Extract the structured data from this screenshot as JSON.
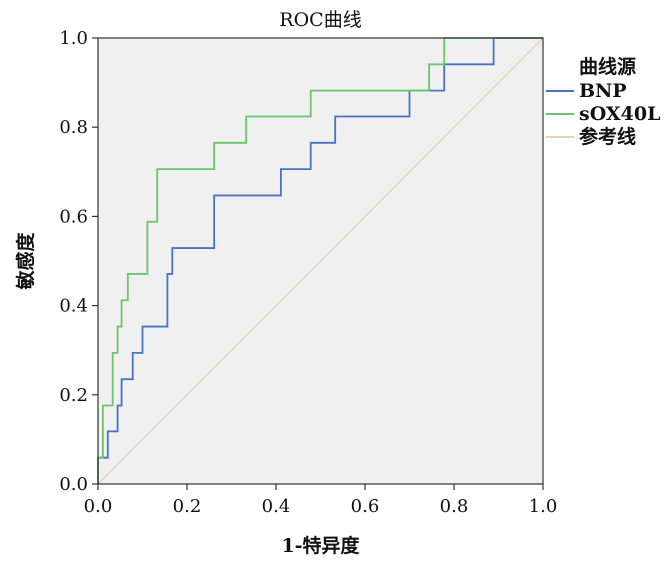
{
  "chart_data": {
    "type": "line",
    "title": "ROC曲线",
    "xlabel": "1-特异度",
    "ylabel": "敏感度",
    "xlim": [
      0,
      1
    ],
    "ylim": [
      0,
      1
    ],
    "xticks": [
      "0.0",
      "0.2",
      "0.4",
      "0.6",
      "0.8",
      "1.0"
    ],
    "yticks": [
      "0.0",
      "0.2",
      "0.4",
      "0.6",
      "0.8",
      "1.0"
    ],
    "grid": false,
    "plot_background": "#f0f0f0",
    "legend": {
      "title": "曲线源",
      "placement": "right",
      "entries": [
        "BNP",
        "sOX40L",
        "参考线"
      ]
    },
    "series": [
      {
        "name": "BNP",
        "color": "#4a72c4",
        "step": true,
        "points": [
          [
            0,
            0
          ],
          [
            0,
            0.059
          ],
          [
            0.022,
            0.059
          ],
          [
            0.022,
            0.118
          ],
          [
            0.044,
            0.118
          ],
          [
            0.044,
            0.176
          ],
          [
            0.053,
            0.176
          ],
          [
            0.053,
            0.235
          ],
          [
            0.078,
            0.235
          ],
          [
            0.078,
            0.294
          ],
          [
            0.1,
            0.294
          ],
          [
            0.1,
            0.353
          ],
          [
            0.156,
            0.353
          ],
          [
            0.156,
            0.471
          ],
          [
            0.167,
            0.471
          ],
          [
            0.167,
            0.529
          ],
          [
            0.261,
            0.529
          ],
          [
            0.261,
            0.647
          ],
          [
            0.411,
            0.647
          ],
          [
            0.411,
            0.706
          ],
          [
            0.478,
            0.706
          ],
          [
            0.478,
            0.765
          ],
          [
            0.533,
            0.765
          ],
          [
            0.533,
            0.824
          ],
          [
            0.7,
            0.824
          ],
          [
            0.7,
            0.882
          ],
          [
            0.778,
            0.882
          ],
          [
            0.778,
            0.941
          ],
          [
            0.889,
            0.941
          ],
          [
            0.889,
            1.0
          ],
          [
            1.0,
            1.0
          ]
        ]
      },
      {
        "name": "sOX40L",
        "color": "#6cc46c",
        "step": true,
        "points": [
          [
            0,
            0
          ],
          [
            0,
            0.059
          ],
          [
            0.011,
            0.059
          ],
          [
            0.011,
            0.176
          ],
          [
            0.033,
            0.176
          ],
          [
            0.033,
            0.294
          ],
          [
            0.044,
            0.294
          ],
          [
            0.044,
            0.353
          ],
          [
            0.053,
            0.353
          ],
          [
            0.053,
            0.412
          ],
          [
            0.067,
            0.412
          ],
          [
            0.067,
            0.471
          ],
          [
            0.111,
            0.471
          ],
          [
            0.111,
            0.588
          ],
          [
            0.133,
            0.588
          ],
          [
            0.133,
            0.706
          ],
          [
            0.261,
            0.706
          ],
          [
            0.261,
            0.765
          ],
          [
            0.333,
            0.765
          ],
          [
            0.333,
            0.824
          ],
          [
            0.478,
            0.824
          ],
          [
            0.478,
            0.882
          ],
          [
            0.744,
            0.882
          ],
          [
            0.744,
            0.941
          ],
          [
            0.778,
            0.941
          ],
          [
            0.778,
            1.0
          ],
          [
            1.0,
            1.0
          ]
        ]
      },
      {
        "name": "参考线",
        "color": "#e3d3ae",
        "step": false,
        "points": [
          [
            0,
            0
          ],
          [
            1,
            1
          ]
        ]
      }
    ]
  }
}
